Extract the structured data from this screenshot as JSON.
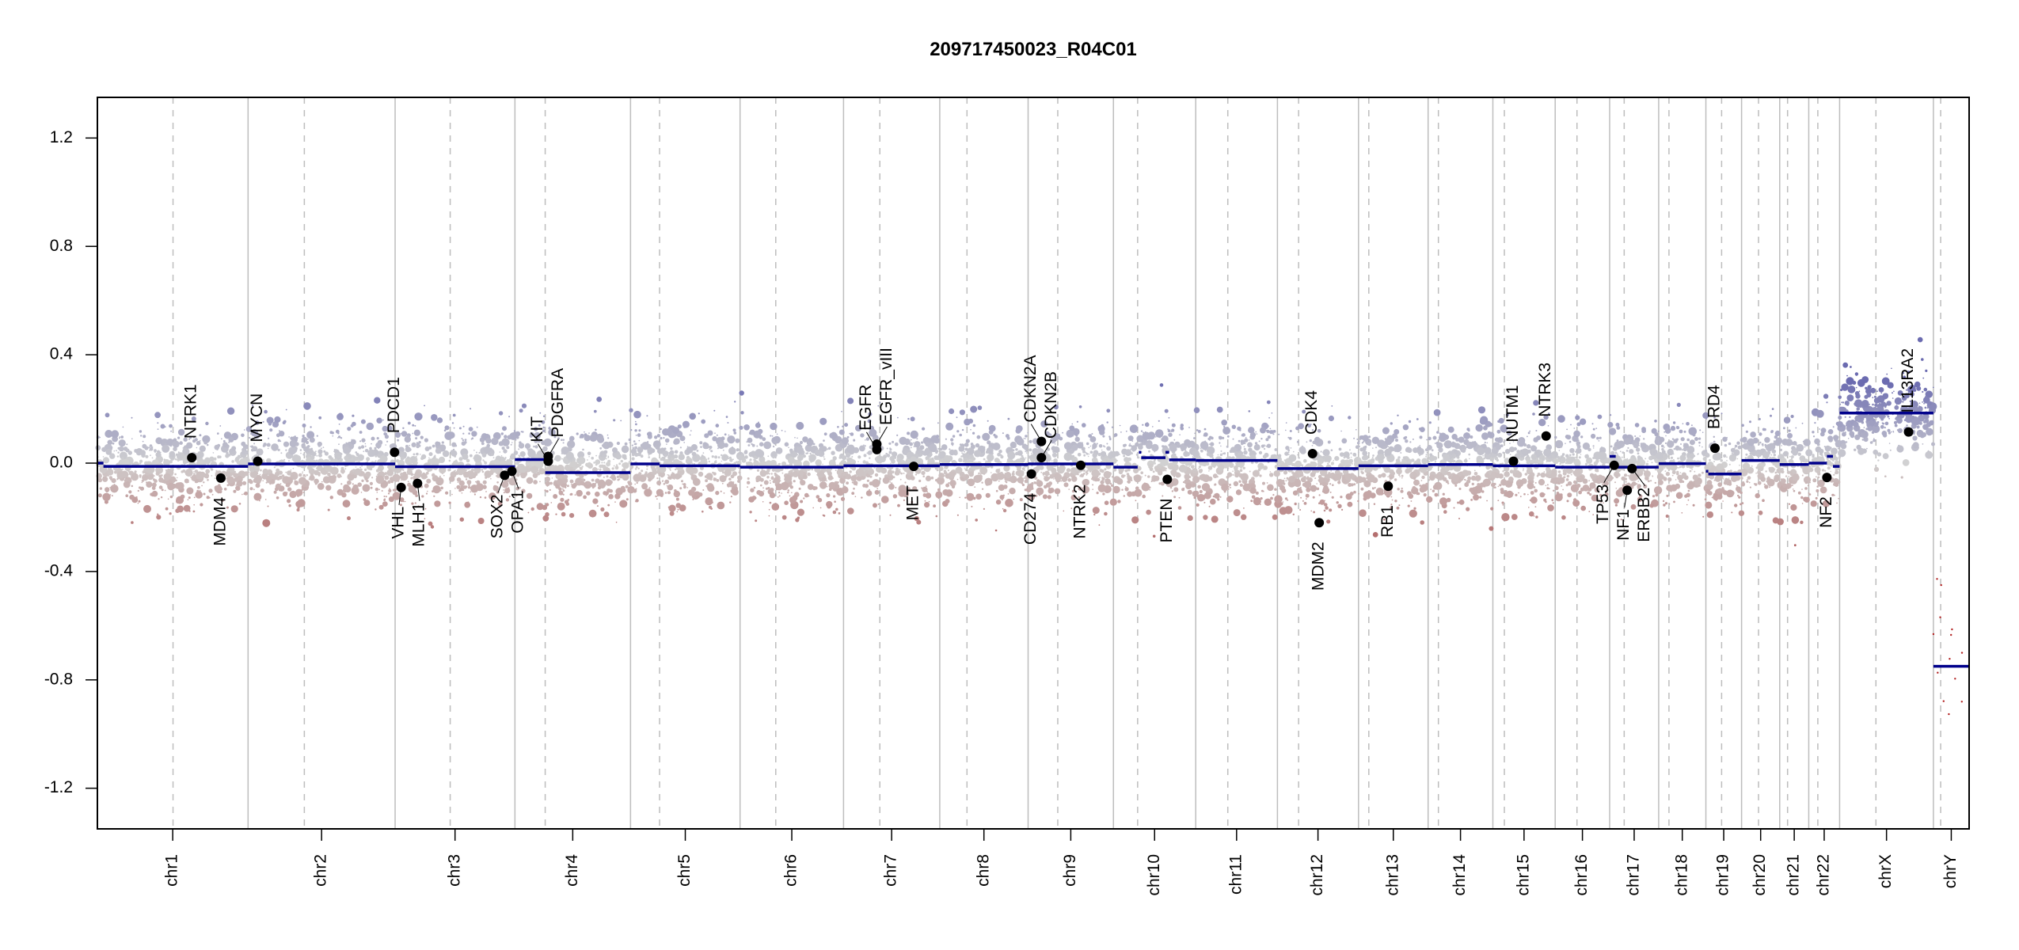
{
  "chart_data": {
    "type": "scatter",
    "title": "209717450023_R04C01",
    "xlabel": "",
    "ylabel": "",
    "ylim": [
      -1.35,
      1.35
    ],
    "yticks": [
      -1.2,
      -0.8,
      -0.4,
      0.0,
      0.4,
      0.8,
      1.2
    ],
    "ytick_labels": [
      "-1.2",
      "-0.8",
      "-0.4",
      "0.0",
      "0.4",
      "0.8",
      "1.2"
    ],
    "grid": false,
    "colors": {
      "gain": "#6b6bb0",
      "neutral": "#d2d2d2",
      "loss": "#b06262",
      "segment": "#00008b",
      "gene": "#000000",
      "chrom_line": "#bdbdbd"
    },
    "probe_noise_sd": 0.075,
    "chromosomes": [
      {
        "name": "chr1",
        "length": 249,
        "centromere": 125
      },
      {
        "name": "chr2",
        "length": 243,
        "centromere": 93
      },
      {
        "name": "chr3",
        "length": 198,
        "centromere": 91
      },
      {
        "name": "chr4",
        "length": 191,
        "centromere": 50
      },
      {
        "name": "chr5",
        "length": 181,
        "centromere": 48
      },
      {
        "name": "chr6",
        "length": 171,
        "centromere": 59
      },
      {
        "name": "chr7",
        "length": 159,
        "centromere": 60
      },
      {
        "name": "chr8",
        "length": 146,
        "centromere": 45
      },
      {
        "name": "chr9",
        "length": 141,
        "centromere": 49
      },
      {
        "name": "chr10",
        "length": 136,
        "centromere": 40
      },
      {
        "name": "chr11",
        "length": 135,
        "centromere": 53
      },
      {
        "name": "chr12",
        "length": 134,
        "centromere": 35
      },
      {
        "name": "chr13",
        "length": 115,
        "centromere": 17
      },
      {
        "name": "chr14",
        "length": 107,
        "centromere": 17
      },
      {
        "name": "chr15",
        "length": 103,
        "centromere": 19
      },
      {
        "name": "chr16",
        "length": 90,
        "centromere": 36
      },
      {
        "name": "chr17",
        "length": 81,
        "centromere": 24
      },
      {
        "name": "chr18",
        "length": 78,
        "centromere": 17
      },
      {
        "name": "chr19",
        "length": 59,
        "centromere": 26
      },
      {
        "name": "chr20",
        "length": 63,
        "centromere": 28
      },
      {
        "name": "chr21",
        "length": 48,
        "centromere": 13
      },
      {
        "name": "chr22",
        "length": 51,
        "centromere": 15
      },
      {
        "name": "chrX",
        "length": 155,
        "centromere": 60
      },
      {
        "name": "chrY",
        "length": 59,
        "centromere": 12
      }
    ],
    "segments": [
      {
        "chr": "chr1",
        "start": 0,
        "end": 10,
        "mean": 0.0
      },
      {
        "chr": "chr1",
        "start": 10,
        "end": 249,
        "mean": -0.012
      },
      {
        "chr": "chr2",
        "start": 0,
        "end": 243,
        "mean": -0.003
      },
      {
        "chr": "chr3",
        "start": 0,
        "end": 198,
        "mean": -0.013
      },
      {
        "chr": "chr4",
        "start": 0,
        "end": 50,
        "mean": 0.013
      },
      {
        "chr": "chr4",
        "start": 50,
        "end": 191,
        "mean": -0.035
      },
      {
        "chr": "chr5",
        "start": 0,
        "end": 48,
        "mean": -0.003
      },
      {
        "chr": "chr5",
        "start": 48,
        "end": 181,
        "mean": -0.01
      },
      {
        "chr": "chr6",
        "start": 0,
        "end": 171,
        "mean": -0.015
      },
      {
        "chr": "chr7",
        "start": 0,
        "end": 159,
        "mean": -0.01
      },
      {
        "chr": "chr8",
        "start": 0,
        "end": 146,
        "mean": -0.005
      },
      {
        "chr": "chr9",
        "start": 0,
        "end": 141,
        "mean": -0.003
      },
      {
        "chr": "chr10",
        "start": 0,
        "end": 40,
        "mean": -0.015
      },
      {
        "chr": "chr10",
        "start": 42,
        "end": 46,
        "mean": 0.04
      },
      {
        "chr": "chr10",
        "start": 46,
        "end": 86,
        "mean": 0.02
      },
      {
        "chr": "chr10",
        "start": 86,
        "end": 92,
        "mean": 0.04
      },
      {
        "chr": "chr10",
        "start": 92,
        "end": 136,
        "mean": 0.012
      },
      {
        "chr": "chr11",
        "start": 0,
        "end": 135,
        "mean": 0.01
      },
      {
        "chr": "chr12",
        "start": 0,
        "end": 134,
        "mean": -0.02
      },
      {
        "chr": "chr13",
        "start": 0,
        "end": 115,
        "mean": -0.01
      },
      {
        "chr": "chr14",
        "start": 0,
        "end": 107,
        "mean": -0.005
      },
      {
        "chr": "chr15",
        "start": 0,
        "end": 103,
        "mean": -0.01
      },
      {
        "chr": "chr16",
        "start": 0,
        "end": 90,
        "mean": -0.015
      },
      {
        "chr": "chr17",
        "start": 0,
        "end": 10,
        "mean": 0.025
      },
      {
        "chr": "chr17",
        "start": 10,
        "end": 81,
        "mean": -0.015
      },
      {
        "chr": "chr18",
        "start": 0,
        "end": 78,
        "mean": -0.002
      },
      {
        "chr": "chr19",
        "start": 0,
        "end": 4,
        "mean": -0.03
      },
      {
        "chr": "chr19",
        "start": 4,
        "end": 59,
        "mean": -0.04
      },
      {
        "chr": "chr20",
        "start": 0,
        "end": 63,
        "mean": 0.01
      },
      {
        "chr": "chr21",
        "start": 0,
        "end": 48,
        "mean": -0.005
      },
      {
        "chr": "chr22",
        "start": 0,
        "end": 30,
        "mean": 0.0
      },
      {
        "chr": "chr22",
        "start": 30,
        "end": 40,
        "mean": 0.025
      },
      {
        "chr": "chr22",
        "start": 40,
        "end": 51,
        "mean": -0.012
      },
      {
        "chr": "chrX",
        "start": 0,
        "end": 155,
        "mean": 0.185
      },
      {
        "chr": "chrY",
        "start": 0,
        "end": 59,
        "mean": -0.75
      }
    ],
    "genes": [
      {
        "name": "NTRK1",
        "chr": "chr1",
        "pos": 156,
        "value": 0.02
      },
      {
        "name": "MDM4",
        "chr": "chr1",
        "pos": 204,
        "value": -0.055
      },
      {
        "name": "MYCN",
        "chr": "chr2",
        "pos": 16,
        "value": 0.007
      },
      {
        "name": "PDCD1",
        "chr": "chr2",
        "pos": 242,
        "value": 0.04
      },
      {
        "name": "VHL",
        "chr": "chr3",
        "pos": 10,
        "value": -0.09
      },
      {
        "name": "MLH1",
        "chr": "chr3",
        "pos": 37,
        "value": -0.075
      },
      {
        "name": "SOX2",
        "chr": "chr3",
        "pos": 181,
        "value": -0.045
      },
      {
        "name": "OPA1",
        "chr": "chr3",
        "pos": 193,
        "value": -0.03
      },
      {
        "name": "KIT",
        "chr": "chr4",
        "pos": 55,
        "value": 0.007
      },
      {
        "name": "PDGFRA",
        "chr": "chr4",
        "pos": 55,
        "value": 0.025
      },
      {
        "name": "EGFR",
        "chr": "chr7",
        "pos": 55,
        "value": 0.05
      },
      {
        "name": "EGFR_vIII",
        "chr": "chr7",
        "pos": 55,
        "value": 0.07
      },
      {
        "name": "MET",
        "chr": "chr7",
        "pos": 116,
        "value": -0.012
      },
      {
        "name": "CD274",
        "chr": "chr9",
        "pos": 5.5,
        "value": -0.04
      },
      {
        "name": "CDKN2A",
        "chr": "chr9",
        "pos": 22,
        "value": 0.08
      },
      {
        "name": "CDKN2B",
        "chr": "chr9",
        "pos": 22,
        "value": 0.02
      },
      {
        "name": "NTRK2",
        "chr": "chr9",
        "pos": 87,
        "value": -0.008
      },
      {
        "name": "PTEN",
        "chr": "chr10",
        "pos": 89,
        "value": -0.06
      },
      {
        "name": "CDK4",
        "chr": "chr12",
        "pos": 58,
        "value": 0.035
      },
      {
        "name": "MDM2",
        "chr": "chr12",
        "pos": 69,
        "value": -0.22
      },
      {
        "name": "RB1",
        "chr": "chr13",
        "pos": 49,
        "value": -0.085
      },
      {
        "name": "NUTM1",
        "chr": "chr15",
        "pos": 34,
        "value": 0.007
      },
      {
        "name": "NTRK3",
        "chr": "chr15",
        "pos": 88,
        "value": 0.1
      },
      {
        "name": "TP53",
        "chr": "chr17",
        "pos": 7.5,
        "value": -0.008
      },
      {
        "name": "NF1",
        "chr": "chr17",
        "pos": 29,
        "value": -0.1
      },
      {
        "name": "ERBB2",
        "chr": "chr17",
        "pos": 37,
        "value": -0.02
      },
      {
        "name": "BRD4",
        "chr": "chr19",
        "pos": 15,
        "value": 0.055
      },
      {
        "name": "NF2",
        "chr": "chr22",
        "pos": 30,
        "value": -0.053
      },
      {
        "name": "IL13RA2",
        "chr": "chrX",
        "pos": 114,
        "value": 0.115
      }
    ]
  }
}
